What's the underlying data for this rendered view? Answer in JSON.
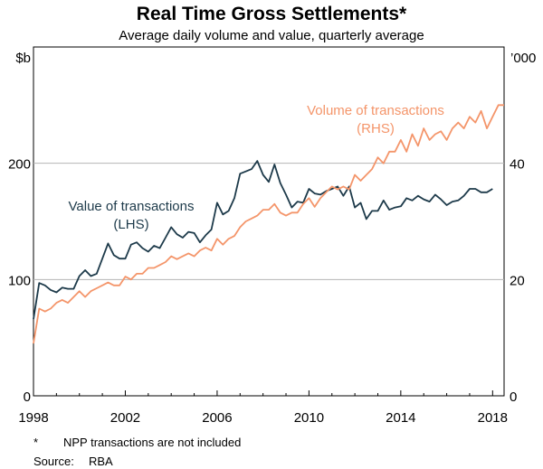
{
  "chart_data": {
    "type": "line",
    "title": "Real Time Gross Settlements*",
    "subtitle": "Average daily volume and value, quarterly average",
    "left_axis": {
      "unit": "$b",
      "ylim": [
        0,
        300
      ],
      "ticks": [
        "0",
        "100",
        "200"
      ],
      "tick_values": [
        0,
        100,
        200
      ]
    },
    "right_axis": {
      "unit": "’000",
      "ylim": [
        0,
        60
      ],
      "ticks": [
        "0",
        "20",
        "40"
      ],
      "tick_values": [
        0,
        20,
        40
      ]
    },
    "x_axis": {
      "xlim": [
        1998,
        2018.5
      ],
      "ticks": [
        "1998",
        "2002",
        "2006",
        "2010",
        "2014",
        "2018"
      ],
      "tick_values": [
        1998,
        2002,
        2006,
        2010,
        2014,
        2018
      ]
    },
    "gridlines": [
      100,
      200
    ],
    "series": [
      {
        "name": "Value of transactions",
        "axis": "left",
        "color": "#1d3a4a",
        "label": [
          "Value of transactions",
          "(LHS)"
        ],
        "x": [
          1998.0,
          1998.25,
          1998.5,
          1998.75,
          1999.0,
          1999.25,
          1999.5,
          1999.75,
          2000.0,
          2000.25,
          2000.5,
          2000.75,
          2001.0,
          2001.25,
          2001.5,
          2001.75,
          2002.0,
          2002.25,
          2002.5,
          2002.75,
          2003.0,
          2003.25,
          2003.5,
          2003.75,
          2004.0,
          2004.25,
          2004.5,
          2004.75,
          2005.0,
          2005.25,
          2005.5,
          2005.75,
          2006.0,
          2006.25,
          2006.5,
          2006.75,
          2007.0,
          2007.25,
          2007.5,
          2007.75,
          2008.0,
          2008.25,
          2008.5,
          2008.75,
          2009.0,
          2009.25,
          2009.5,
          2009.75,
          2010.0,
          2010.25,
          2010.5,
          2010.75,
          2011.0,
          2011.25,
          2011.5,
          2011.75,
          2012.0,
          2012.25,
          2012.5,
          2012.75,
          2013.0,
          2013.25,
          2013.5,
          2013.75,
          2014.0,
          2014.25,
          2014.5,
          2014.75,
          2015.0,
          2015.25,
          2015.5,
          2015.75,
          2016.0,
          2016.25,
          2016.5,
          2016.75,
          2017.0,
          2017.25,
          2017.5,
          2017.75,
          2018.0
        ],
        "values": [
          66,
          97,
          95,
          91,
          89,
          93,
          92,
          92,
          103,
          108,
          103,
          105,
          118,
          131,
          121,
          118,
          118,
          130,
          132,
          127,
          124,
          129,
          127,
          136,
          145,
          139,
          136,
          141,
          140,
          132,
          138,
          143,
          166,
          156,
          159,
          170,
          191,
          193,
          195,
          202,
          190,
          184,
          199,
          183,
          173,
          162,
          167,
          166,
          178,
          174,
          173,
          176,
          178,
          180,
          172,
          180,
          162,
          166,
          152,
          159,
          159,
          168,
          160,
          162,
          163,
          170,
          168,
          172,
          169,
          167,
          173,
          169,
          164,
          167,
          168,
          172,
          178,
          178,
          175,
          175,
          178
        ]
      },
      {
        "name": "Volume of transactions",
        "axis": "right",
        "color": "#f4956a",
        "label": [
          "Volume of transactions",
          "(RHS)"
        ],
        "x": [
          1998.0,
          1998.25,
          1998.5,
          1998.75,
          1999.0,
          1999.25,
          1999.5,
          1999.75,
          2000.0,
          2000.25,
          2000.5,
          2000.75,
          2001.0,
          2001.25,
          2001.5,
          2001.75,
          2002.0,
          2002.25,
          2002.5,
          2002.75,
          2003.0,
          2003.25,
          2003.5,
          2003.75,
          2004.0,
          2004.25,
          2004.5,
          2004.75,
          2005.0,
          2005.25,
          2005.5,
          2005.75,
          2006.0,
          2006.25,
          2006.5,
          2006.75,
          2007.0,
          2007.25,
          2007.5,
          2007.75,
          2008.0,
          2008.25,
          2008.5,
          2008.75,
          2009.0,
          2009.25,
          2009.5,
          2009.75,
          2010.0,
          2010.25,
          2010.5,
          2010.75,
          2011.0,
          2011.25,
          2011.5,
          2011.75,
          2012.0,
          2012.25,
          2012.5,
          2012.75,
          2013.0,
          2013.25,
          2013.5,
          2013.75,
          2014.0,
          2014.25,
          2014.5,
          2014.75,
          2015.0,
          2015.25,
          2015.5,
          2015.75,
          2016.0,
          2016.25,
          2016.5,
          2016.75,
          2017.0,
          2017.25,
          2017.5,
          2017.75,
          2018.0,
          2018.25,
          2018.5
        ],
        "values": [
          9,
          15,
          14.5,
          15,
          16,
          16.5,
          16,
          17,
          18,
          17,
          18,
          18.5,
          19,
          19.5,
          19,
          19,
          20.5,
          20,
          21,
          21,
          22,
          22,
          22.5,
          23,
          24,
          23.5,
          24,
          24.5,
          24,
          25,
          25.5,
          25,
          27,
          26,
          27,
          27.5,
          29,
          30,
          30.5,
          31,
          32,
          32,
          33,
          31.5,
          31,
          31.5,
          31.5,
          33,
          34,
          32.5,
          34,
          35,
          36,
          35.5,
          36,
          35.5,
          38,
          37,
          38,
          39,
          41,
          40,
          42,
          42,
          44,
          42,
          45,
          43,
          46,
          44,
          45,
          45.5,
          44,
          46,
          47,
          46,
          48,
          47,
          49,
          46,
          48,
          50,
          50
        ]
      }
    ],
    "footnotes": [
      {
        "marker": "*",
        "text": "NPP transactions are not included"
      },
      {
        "marker": "Source:",
        "text": "RBA"
      }
    ]
  }
}
